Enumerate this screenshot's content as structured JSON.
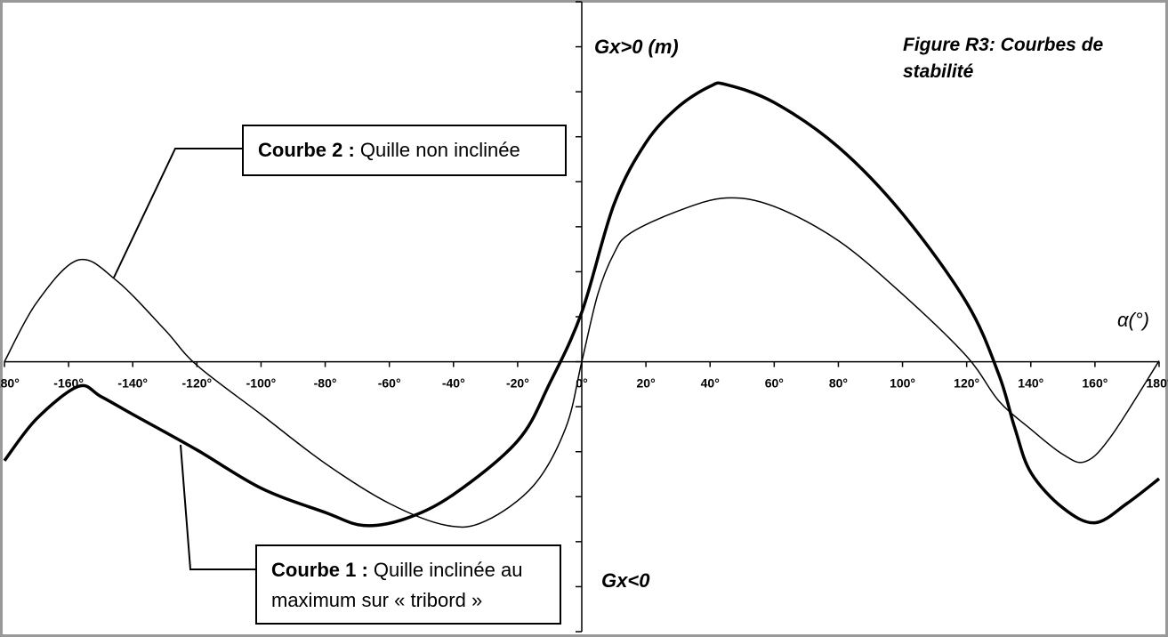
{
  "chart_data": {
    "type": "line",
    "title": "Figure R3: Courbes de stabilité",
    "y_label_top": "Gx>0 (m)",
    "y_label_bottom": "Gx<0",
    "x_label": "α(°)",
    "xlim": [
      -180,
      180
    ],
    "xticks": [
      {
        "value": -180,
        "label": "-180°"
      },
      {
        "value": -160,
        "label": "-160°"
      },
      {
        "value": -140,
        "label": "-140°"
      },
      {
        "value": -120,
        "label": "-120°"
      },
      {
        "value": -100,
        "label": "-100°"
      },
      {
        "value": -80,
        "label": "-80°"
      },
      {
        "value": -60,
        "label": "-60°"
      },
      {
        "value": -40,
        "label": "-40°"
      },
      {
        "value": -20,
        "label": "-20°"
      },
      {
        "value": 0,
        "label": "0°"
      },
      {
        "value": 20,
        "label": "20°"
      },
      {
        "value": 40,
        "label": "40°"
      },
      {
        "value": 60,
        "label": "60°"
      },
      {
        "value": 80,
        "label": "80°"
      },
      {
        "value": 100,
        "label": "100°"
      },
      {
        "value": 120,
        "label": "120°"
      },
      {
        "value": 140,
        "label": "140°"
      },
      {
        "value": 160,
        "label": "160°"
      },
      {
        "value": 180,
        "label": "180°"
      }
    ],
    "ylim": [
      -6,
      8
    ],
    "yticks": [
      -6,
      -5,
      -4,
      -3,
      -2,
      -1,
      0,
      1,
      2,
      3,
      4,
      5,
      6,
      7,
      8
    ],
    "series": [
      {
        "name": "Courbe 1 :",
        "description": "Quille inclinée au maximum sur « tribord »",
        "color": "#000000",
        "width": 3.5,
        "x": [
          -180,
          -170,
          -157,
          -150,
          -140,
          -120,
          -100,
          -80,
          -68,
          -55,
          -40,
          -20,
          -10,
          0,
          10,
          20,
          30,
          40,
          45,
          60,
          80,
          100,
          120,
          130,
          135,
          140,
          150,
          160,
          170,
          180
        ],
        "values": [
          -2.2,
          -1.27,
          -0.55,
          -0.77,
          -1.17,
          -1.96,
          -2.81,
          -3.35,
          -3.64,
          -3.49,
          -2.95,
          -1.76,
          -0.48,
          1.1,
          3.49,
          4.87,
          5.66,
          6.12,
          6.16,
          5.76,
          4.77,
          3.29,
          1.31,
          -0.28,
          -1.47,
          -2.46,
          -3.25,
          -3.58,
          -3.15,
          -2.6
        ]
      },
      {
        "name": "Courbe 2 :",
        "description": "Quille non inclinée",
        "color": "#000000",
        "width": 1.5,
        "x": [
          -180,
          -170,
          -157,
          -145,
          -130,
          -120,
          -100,
          -80,
          -60,
          -42,
          -30,
          -15,
          -5,
          0,
          5,
          10,
          15,
          30,
          45,
          60,
          80,
          100,
          120,
          130,
          140,
          150,
          157,
          165,
          180
        ],
        "values": [
          0,
          1.31,
          2.26,
          1.8,
          0.71,
          -0.08,
          -1.17,
          -2.26,
          -3.15,
          -3.64,
          -3.54,
          -2.75,
          -1.47,
          0,
          1.5,
          2.4,
          2.85,
          3.35,
          3.64,
          3.45,
          2.69,
          1.5,
          0.12,
          -0.87,
          -1.5,
          -2.06,
          -2.22,
          -1.66,
          0.02
        ]
      }
    ]
  }
}
